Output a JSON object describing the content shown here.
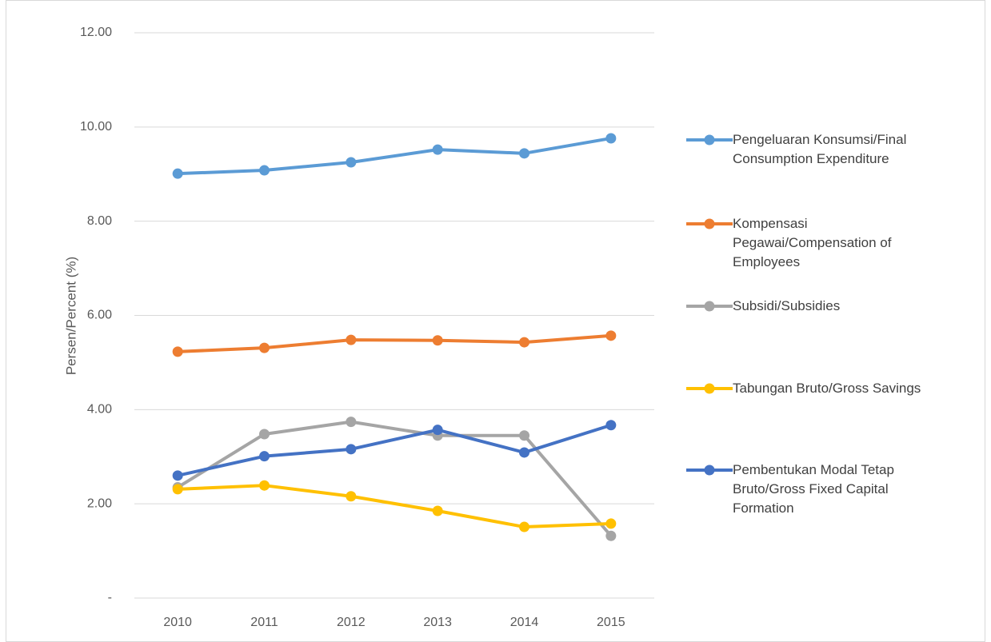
{
  "chart_data": {
    "type": "line",
    "y_label": "Persen/Percent (%)",
    "categories": [
      "2010",
      "2011",
      "2012",
      "2013",
      "2014",
      "2015"
    ],
    "series": [
      {
        "name": "Pengeluaran Konsumsi/Final Consumption Expenditure",
        "color": "#5b9bd5",
        "values": [
          9.01,
          9.08,
          9.25,
          9.52,
          9.44,
          9.76
        ]
      },
      {
        "name": "Kompensasi Pegawai/Compensation of Employees",
        "color": "#ed7d31",
        "values": [
          5.23,
          5.31,
          5.48,
          5.47,
          5.43,
          5.57
        ]
      },
      {
        "name": "Subsidi/Subsidies",
        "color": "#a5a5a5",
        "values": [
          2.35,
          3.48,
          3.74,
          3.45,
          3.45,
          1.32
        ]
      },
      {
        "name": "Tabungan Bruto/Gross Savings",
        "color": "#ffc000",
        "values": [
          2.31,
          2.39,
          2.16,
          1.85,
          1.51,
          1.58
        ]
      },
      {
        "name": "Pembentukan Modal Tetap Bruto/Gross Fixed Capital Formation",
        "color": "#4472c4",
        "values": [
          2.6,
          3.01,
          3.16,
          3.57,
          3.09,
          3.67
        ]
      }
    ],
    "ylim": [
      0,
      12
    ],
    "yticks": [
      {
        "value": 0,
        "label": "-"
      },
      {
        "value": 2,
        "label": "2.00"
      },
      {
        "value": 4,
        "label": "4.00"
      },
      {
        "value": 6,
        "label": "6.00"
      },
      {
        "value": 8,
        "label": "8.00"
      },
      {
        "value": 10,
        "label": "10.00"
      },
      {
        "value": 12,
        "label": "12.00"
      }
    ],
    "grid": true,
    "legend": "right"
  }
}
